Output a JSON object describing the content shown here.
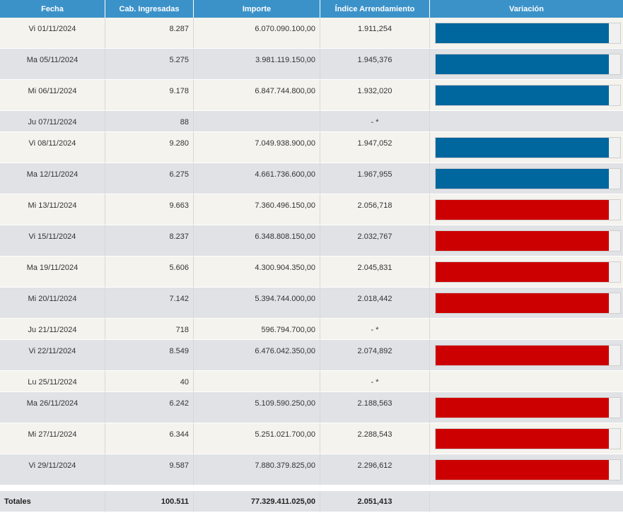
{
  "headers": {
    "fecha": "Fecha",
    "cab": "Cab. Ingresadas",
    "importe": "Importe",
    "indice": "Índice Arrendamiento",
    "variacion": "Variación"
  },
  "colors": {
    "up": "#00669e",
    "down": "#cc0000"
  },
  "rows": [
    {
      "fecha": "Vi 01/11/2024",
      "cab": "8.287",
      "importe": "6.070.090.100,00",
      "indice": "1.911,254",
      "variacion": "up",
      "bar_fill_pct": 94
    },
    {
      "fecha": "Ma 05/11/2024",
      "cab": "5.275",
      "importe": "3.981.119.150,00",
      "indice": "1.945,376",
      "variacion": "up",
      "bar_fill_pct": 94
    },
    {
      "fecha": "Mi 06/11/2024",
      "cab": "9.178",
      "importe": "6.847.744.800,00",
      "indice": "1.932,020",
      "variacion": "up",
      "bar_fill_pct": 94
    },
    {
      "fecha": "Ju 07/11/2024",
      "cab": "88",
      "importe": "",
      "indice": "- *",
      "variacion": null
    },
    {
      "fecha": "Vi 08/11/2024",
      "cab": "9.280",
      "importe": "7.049.938.900,00",
      "indice": "1.947,052",
      "variacion": "up",
      "bar_fill_pct": 94
    },
    {
      "fecha": "Ma 12/11/2024",
      "cab": "6.275",
      "importe": "4.661.736.600,00",
      "indice": "1.967,955",
      "variacion": "up",
      "bar_fill_pct": 94
    },
    {
      "fecha": "Mi 13/11/2024",
      "cab": "9.663",
      "importe": "7.360.496.150,00",
      "indice": "2.056,718",
      "variacion": "down",
      "bar_fill_pct": 94
    },
    {
      "fecha": "Vi 15/11/2024",
      "cab": "8.237",
      "importe": "6.348.808.150,00",
      "indice": "2.032,767",
      "variacion": "down",
      "bar_fill_pct": 94
    },
    {
      "fecha": "Ma 19/11/2024",
      "cab": "5.606",
      "importe": "4.300.904.350,00",
      "indice": "2.045,831",
      "variacion": "down",
      "bar_fill_pct": 94
    },
    {
      "fecha": "Mi 20/11/2024",
      "cab": "7.142",
      "importe": "5.394.744.000,00",
      "indice": "2.018,442",
      "variacion": "down",
      "bar_fill_pct": 94
    },
    {
      "fecha": "Ju 21/11/2024",
      "cab": "718",
      "importe": "596.794.700,00",
      "indice": "- *",
      "variacion": null
    },
    {
      "fecha": "Vi 22/11/2024",
      "cab": "8.549",
      "importe": "6.476.042.350,00",
      "indice": "2.074,892",
      "variacion": "down",
      "bar_fill_pct": 94
    },
    {
      "fecha": "Lu 25/11/2024",
      "cab": "40",
      "importe": "",
      "indice": "- *",
      "variacion": null
    },
    {
      "fecha": "Ma 26/11/2024",
      "cab": "6.242",
      "importe": "5.109.590.250,00",
      "indice": "2.188,563",
      "variacion": "down",
      "bar_fill_pct": 94
    },
    {
      "fecha": "Mi 27/11/2024",
      "cab": "6.344",
      "importe": "5.251.021.700,00",
      "indice": "2.288,543",
      "variacion": "down",
      "bar_fill_pct": 94
    },
    {
      "fecha": "Vi 29/11/2024",
      "cab": "9.587",
      "importe": "7.880.379.825,00",
      "indice": "2.296,612",
      "variacion": "down",
      "bar_fill_pct": 94
    }
  ],
  "totals": {
    "label": "Totales",
    "cab": "100.511",
    "importe": "77.329.411.025,00",
    "indice": "2.051,413"
  }
}
